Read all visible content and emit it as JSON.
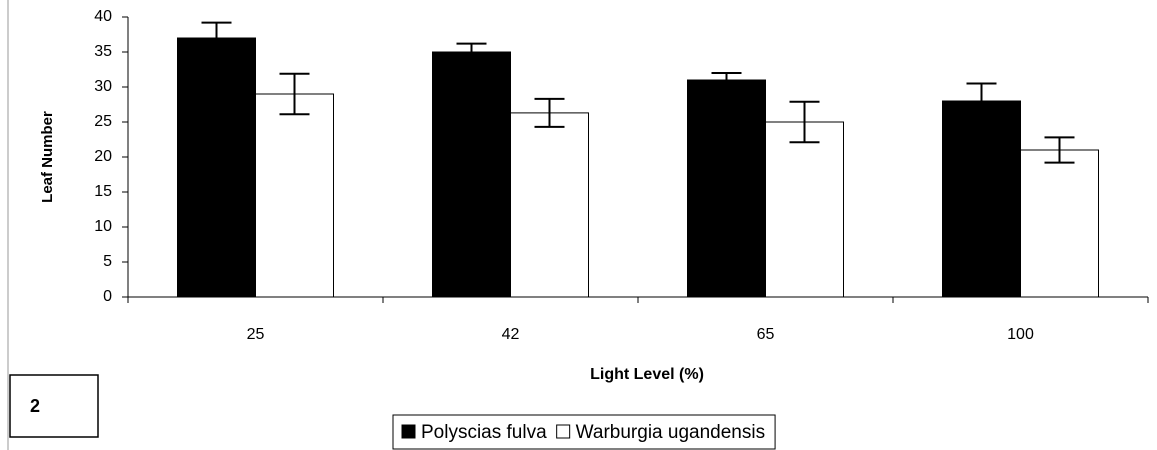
{
  "chart_data": {
    "type": "bar",
    "panel_label": "2",
    "x_label": "Light Level (%)",
    "y_label": "Leaf Number",
    "categories": [
      "25",
      "42",
      "65",
      "100"
    ],
    "series": [
      {
        "name": "Polyscias fulva",
        "color": "#000000",
        "values": [
          37,
          35,
          31,
          28
        ],
        "errors": [
          2.2,
          1.2,
          1.0,
          2.5
        ]
      },
      {
        "name": "Warburgia ugandensis",
        "color": "#ffffff",
        "values": [
          29,
          26.3,
          25,
          21
        ],
        "errors": [
          2.9,
          2.0,
          2.9,
          1.8
        ]
      }
    ],
    "ylim": [
      0,
      40
    ],
    "yticks": [
      0,
      5,
      10,
      15,
      20,
      25,
      30,
      35,
      40
    ],
    "grid": false,
    "legend": "bottom"
  }
}
